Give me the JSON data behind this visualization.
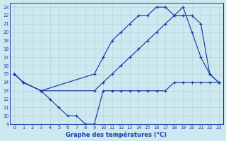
{
  "title": "Graphe des températures (°C)",
  "bg_color": "#cde8ee",
  "line_color": "#1a3aab",
  "grid_color": "#b8d8e0",
  "xlim": [
    -0.5,
    23.5
  ],
  "ylim": [
    9,
    23.5
  ],
  "xticks": [
    0,
    1,
    2,
    3,
    4,
    5,
    6,
    7,
    8,
    9,
    10,
    11,
    12,
    13,
    14,
    15,
    16,
    17,
    18,
    19,
    20,
    21,
    22,
    23
  ],
  "yticks": [
    9,
    10,
    11,
    12,
    13,
    14,
    15,
    16,
    17,
    18,
    19,
    20,
    21,
    22,
    23
  ],
  "s1_x": [
    0,
    1,
    3,
    4,
    5,
    6,
    7,
    8,
    9,
    10,
    11,
    12,
    13,
    14,
    15,
    16,
    17,
    18,
    19,
    20,
    21,
    22,
    23
  ],
  "s1_y": [
    15,
    14,
    13,
    12,
    11,
    10,
    10,
    9,
    9,
    13,
    13,
    13,
    13,
    13,
    13,
    13,
    13,
    14,
    14,
    14,
    14,
    14,
    14
  ],
  "s2_x": [
    0,
    1,
    3,
    9,
    10,
    11,
    12,
    13,
    14,
    15,
    16,
    17,
    18,
    19,
    20,
    21,
    22,
    23
  ],
  "s2_y": [
    15,
    14,
    13,
    13,
    14,
    15,
    16,
    17,
    18,
    19,
    20,
    21,
    22,
    23,
    20,
    17,
    15,
    14
  ],
  "s3_x": [
    0,
    1,
    3,
    9,
    10,
    11,
    12,
    13,
    14,
    15,
    16,
    17,
    18,
    19,
    20,
    21,
    22,
    23
  ],
  "s3_y": [
    15,
    14,
    13,
    15,
    17,
    19,
    20,
    21,
    22,
    22,
    23,
    23,
    22,
    22,
    22,
    21,
    15,
    14
  ]
}
